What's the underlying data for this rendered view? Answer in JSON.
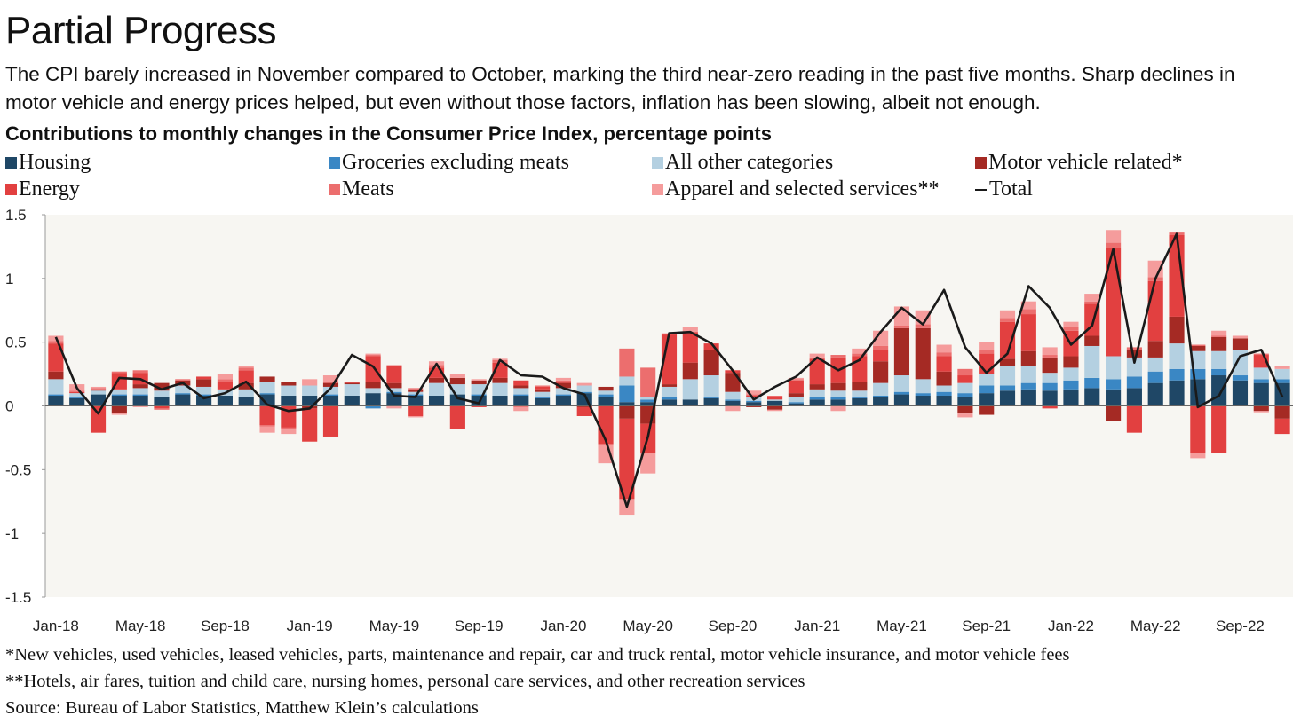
{
  "title": "Partial Progress",
  "subtitle": "The CPI barely increased in November compared to October, marking the third near-zero reading in the past five months. Sharp declines in motor vehicle and energy prices helped, but even without those factors, inflation has been slowing, albeit not enough.",
  "chart_title": "Contributions to monthly changes in the Consumer Price Index, percentage points",
  "legend": [
    {
      "label": "Housing",
      "color": "#1f4766"
    },
    {
      "label": "Groceries excluding meats",
      "color": "#3a87c4"
    },
    {
      "label": "All other categories",
      "color": "#b4d0e1"
    },
    {
      "label": "Motor vehicle related*",
      "color": "#a52a24"
    },
    {
      "label": "Energy",
      "color": "#e24040"
    },
    {
      "label": "Meats",
      "color": "#ec6e6e"
    },
    {
      "label": "Apparel and selected services**",
      "color": "#f59c9c"
    },
    {
      "label": "Total",
      "color": "#1a1a1a"
    }
  ],
  "footnotes": {
    "note1": "*New vehicles, used vehicles, leased vehicles, parts, maintenance and repair, car and truck rental, motor vehicle insurance, and motor vehicle fees",
    "note2": "**Hotels, air fares, tuition and child care, nursing homes, personal care services, and other recreation services",
    "source": "Source: Bureau of Labor Statistics, Matthew Klein’s calculations"
  },
  "chart_data": {
    "type": "bar",
    "stacked": true,
    "ylim": [
      -1.5,
      1.5
    ],
    "yticks": [
      1.5,
      1,
      0.5,
      0,
      -0.5,
      -1,
      -1.5
    ],
    "ytick_labels": [
      "1.5",
      "1",
      "0.5",
      "0",
      "-0.5",
      "-1",
      "-1.5"
    ],
    "xtick_labels": [
      "Jan-18",
      "May-18",
      "Sep-18",
      "Jan-19",
      "May-19",
      "Sep-19",
      "Jan-20",
      "May-20",
      "Sep-20",
      "Jan-21",
      "May-21",
      "Sep-21",
      "Jan-22",
      "May-22",
      "Sep-22"
    ],
    "xtick_every": 4,
    "categories": [
      "Jan-18",
      "Feb-18",
      "Mar-18",
      "Apr-18",
      "May-18",
      "Jun-18",
      "Jul-18",
      "Aug-18",
      "Sep-18",
      "Oct-18",
      "Nov-18",
      "Dec-18",
      "Jan-19",
      "Feb-19",
      "Mar-19",
      "Apr-19",
      "May-19",
      "Jun-19",
      "Jul-19",
      "Aug-19",
      "Sep-19",
      "Oct-19",
      "Nov-19",
      "Dec-19",
      "Jan-20",
      "Feb-20",
      "Mar-20",
      "Apr-20",
      "May-20",
      "Jun-20",
      "Jul-20",
      "Aug-20",
      "Sep-20",
      "Oct-20",
      "Nov-20",
      "Dec-20",
      "Jan-21",
      "Feb-21",
      "Mar-21",
      "Apr-21",
      "May-21",
      "Jun-21",
      "Jul-21",
      "Aug-21",
      "Sep-21",
      "Oct-21",
      "Nov-21",
      "Dec-21",
      "Jan-22",
      "Feb-22",
      "Mar-22",
      "Apr-22",
      "May-22",
      "Jun-22",
      "Jul-22",
      "Aug-22",
      "Sep-22",
      "Oct-22",
      "Nov-22"
    ],
    "series": [
      {
        "name": "Housing",
        "color": "#1f4766",
        "values": [
          0.08,
          0.06,
          0.09,
          0.08,
          0.08,
          0.07,
          0.09,
          0.08,
          0.08,
          0.07,
          0.09,
          0.08,
          0.08,
          0.08,
          0.08,
          0.1,
          0.1,
          0.08,
          0.08,
          0.09,
          0.08,
          0.08,
          0.08,
          0.06,
          0.08,
          0.1,
          0.07,
          0.03,
          0.03,
          0.05,
          0.05,
          0.06,
          0.04,
          0.03,
          0.04,
          0.02,
          0.05,
          0.05,
          0.06,
          0.07,
          0.09,
          0.08,
          0.08,
          0.07,
          0.1,
          0.12,
          0.13,
          0.12,
          0.13,
          0.14,
          0.13,
          0.14,
          0.18,
          0.2,
          0.21,
          0.24,
          0.2,
          0.18,
          0.18
        ]
      },
      {
        "name": "Groceries excluding meats",
        "color": "#3a87c4",
        "values": [
          0.01,
          0.01,
          0.0,
          0.01,
          0.01,
          0.0,
          0.01,
          0.01,
          0.0,
          0.0,
          0.01,
          0.0,
          0.0,
          0.01,
          0.0,
          -0.02,
          0.01,
          0.01,
          0.0,
          0.0,
          0.01,
          0.0,
          0.01,
          0.01,
          0.01,
          0.01,
          0.02,
          0.13,
          0.02,
          0.02,
          0.0,
          0.01,
          0.01,
          0.01,
          0.0,
          0.01,
          0.02,
          0.02,
          0.01,
          0.01,
          0.02,
          0.02,
          0.03,
          0.03,
          0.06,
          0.04,
          0.05,
          0.06,
          0.07,
          0.08,
          0.08,
          0.09,
          0.09,
          0.09,
          0.08,
          0.05,
          0.04,
          0.03,
          0.03
        ]
      },
      {
        "name": "All other categories",
        "color": "#b4d0e1",
        "values": [
          0.12,
          0.03,
          0.03,
          0.04,
          0.05,
          0.05,
          0.06,
          0.06,
          0.05,
          0.06,
          0.09,
          0.08,
          0.08,
          0.06,
          0.09,
          0.04,
          0.03,
          0.02,
          0.1,
          0.08,
          0.08,
          0.1,
          0.05,
          0.04,
          0.05,
          0.05,
          0.03,
          0.07,
          0.02,
          0.08,
          0.16,
          0.17,
          0.06,
          0.03,
          0.01,
          0.04,
          0.06,
          0.05,
          0.05,
          0.1,
          0.13,
          0.11,
          0.05,
          0.08,
          0.09,
          0.15,
          0.13,
          0.08,
          0.1,
          0.25,
          0.18,
          0.15,
          0.11,
          0.2,
          0.14,
          0.14,
          0.2,
          0.09,
          0.08
        ]
      },
      {
        "name": "Motor vehicle related*",
        "color": "#a52a24",
        "values": [
          0.06,
          0.0,
          0.01,
          -0.06,
          0.03,
          0.06,
          0.04,
          0.06,
          0.0,
          0.05,
          0.04,
          0.03,
          -0.02,
          0.03,
          0.01,
          0.05,
          0.04,
          0.02,
          0.04,
          0.05,
          0.03,
          0.04,
          0.02,
          0.02,
          0.04,
          -0.01,
          0.03,
          -0.1,
          -0.14,
          0.02,
          0.13,
          0.2,
          0.15,
          -0.01,
          -0.03,
          0.03,
          0.04,
          0.06,
          0.07,
          0.17,
          0.37,
          0.4,
          0.11,
          -0.06,
          -0.07,
          0.06,
          0.12,
          0.12,
          0.09,
          0.08,
          -0.12,
          0.06,
          0.13,
          0.21,
          0.04,
          0.11,
          0.09,
          -0.04,
          -0.1
        ]
      },
      {
        "name": "Energy",
        "color": "#e24040",
        "values": [
          0.22,
          0.01,
          -0.21,
          0.13,
          0.09,
          -0.02,
          0.0,
          0.02,
          0.06,
          0.1,
          -0.15,
          -0.17,
          -0.26,
          -0.24,
          0.01,
          0.2,
          0.13,
          -0.08,
          0.08,
          -0.18,
          -0.01,
          0.12,
          0.04,
          0.02,
          0.01,
          -0.07,
          -0.3,
          -0.63,
          -0.23,
          0.39,
          0.24,
          0.05,
          0.02,
          0.01,
          0.02,
          0.1,
          0.2,
          0.2,
          0.2,
          0.09,
          0.0,
          0.0,
          0.12,
          0.06,
          0.16,
          0.29,
          0.29,
          -0.02,
          0.2,
          0.25,
          0.85,
          -0.21,
          0.47,
          0.64,
          -0.37,
          -0.37,
          0.0,
          0.1,
          -0.12
        ]
      },
      {
        "name": "Meats",
        "color": "#ec6e6e",
        "values": [
          0.02,
          0.01,
          0.01,
          0.01,
          0.02,
          -0.01,
          0.01,
          0.0,
          0.02,
          0.02,
          -0.01,
          -0.01,
          0.0,
          0.01,
          0.0,
          0.01,
          0.01,
          0.01,
          0.02,
          0.0,
          0.0,
          0.02,
          -0.01,
          0.01,
          0.01,
          0.0,
          0.0,
          0.22,
          0.23,
          0.0,
          0.0,
          0.0,
          0.0,
          0.01,
          0.01,
          0.01,
          0.01,
          0.02,
          0.02,
          0.03,
          0.02,
          0.03,
          0.03,
          0.05,
          0.03,
          0.03,
          0.04,
          0.02,
          0.03,
          0.02,
          0.04,
          0.02,
          0.03,
          0.02,
          0.01,
          0.01,
          0.0,
          0.01,
          0.0
        ]
      },
      {
        "name": "Apparel and selected services**",
        "color": "#f59c9c",
        "values": [
          0.04,
          0.05,
          0.01,
          -0.01,
          -0.01,
          0.0,
          0.0,
          0.0,
          0.04,
          0.01,
          -0.05,
          -0.04,
          0.05,
          0.05,
          0.0,
          0.01,
          -0.02,
          -0.01,
          0.03,
          0.03,
          0.01,
          0.01,
          -0.03,
          0.0,
          0.02,
          0.02,
          -0.15,
          -0.13,
          -0.16,
          0.01,
          0.04,
          0.0,
          -0.04,
          0.03,
          -0.01,
          0.01,
          0.03,
          -0.04,
          0.04,
          0.12,
          0.15,
          0.11,
          0.06,
          -0.03,
          0.06,
          0.06,
          0.06,
          0.06,
          0.04,
          0.06,
          0.1,
          0.0,
          0.13,
          0.0,
          -0.04,
          0.04,
          0.02,
          -0.01,
          0.02
        ]
      },
      {
        "name": "Total",
        "color": "#1a1a1a",
        "type": "line",
        "values": [
          0.54,
          0.14,
          -0.06,
          0.22,
          0.21,
          0.13,
          0.18,
          0.06,
          0.1,
          0.19,
          0.01,
          -0.04,
          -0.02,
          0.14,
          0.4,
          0.31,
          0.08,
          0.07,
          0.33,
          0.06,
          0.02,
          0.36,
          0.24,
          0.23,
          0.14,
          0.09,
          -0.27,
          -0.79,
          -0.24,
          0.57,
          0.58,
          0.49,
          0.28,
          0.05,
          0.15,
          0.23,
          0.38,
          0.28,
          0.36,
          0.58,
          0.77,
          0.64,
          0.91,
          0.46,
          0.26,
          0.41,
          0.94,
          0.77,
          0.48,
          0.63,
          1.23,
          0.34,
          1.0,
          1.35,
          -0.01,
          0.08,
          0.39,
          0.44,
          0.07
        ]
      }
    ]
  }
}
